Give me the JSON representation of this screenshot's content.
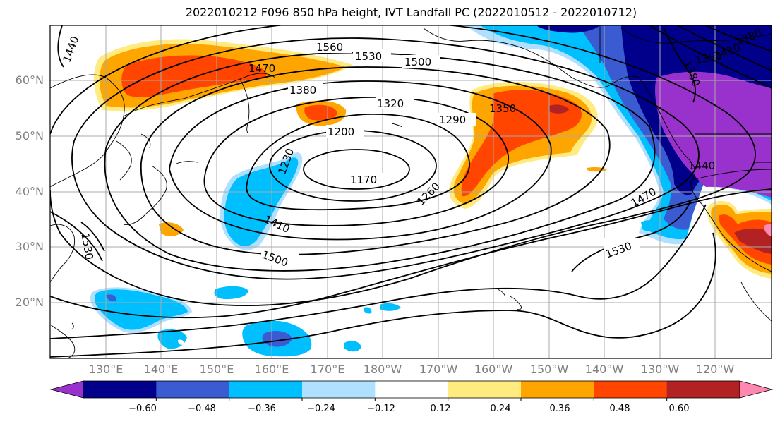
{
  "title": "2022010212 F096 850 hPa height, IVT Landfall PC (2022010512 - 2022010712)",
  "lat_labels": [
    "60°N",
    "50°N",
    "40°N",
    "30°N",
    "20°N"
  ],
  "lon_labels": [
    "130°E",
    "140°E",
    "150°E",
    "160°E",
    "170°E",
    "180°W",
    "170°W",
    "160°W",
    "150°W",
    "140°W",
    "130°W",
    "120°W"
  ],
  "colorbar": {
    "ticks": [
      "−0.60",
      "−0.48",
      "−0.36",
      "−0.24",
      "−0.12",
      "0.12",
      "0.24",
      "0.36",
      "0.48",
      "0.60"
    ],
    "colors": [
      "#9932CC",
      "#00008B",
      "#3A5BD1",
      "#00BFFF",
      "#B0E0FF",
      "#FFFFFF",
      "#FFEB7F",
      "#FFA500",
      "#FF4500",
      "#B22222",
      "#FF88B0"
    ]
  },
  "contour_labels": [
    "1440",
    "1560",
    "1530",
    "1500",
    "1470",
    "1380",
    "1320",
    "1290",
    "1350",
    "1200",
    "1230",
    "1170",
    "1260",
    "1410",
    "1500",
    "1530",
    "1440",
    "1470",
    "1380",
    "1350",
    "1380",
    "1410",
    "1530"
  ],
  "colors": {
    "contour": "#000000",
    "grid": "#a9a9a9",
    "coast": "#000000"
  }
}
